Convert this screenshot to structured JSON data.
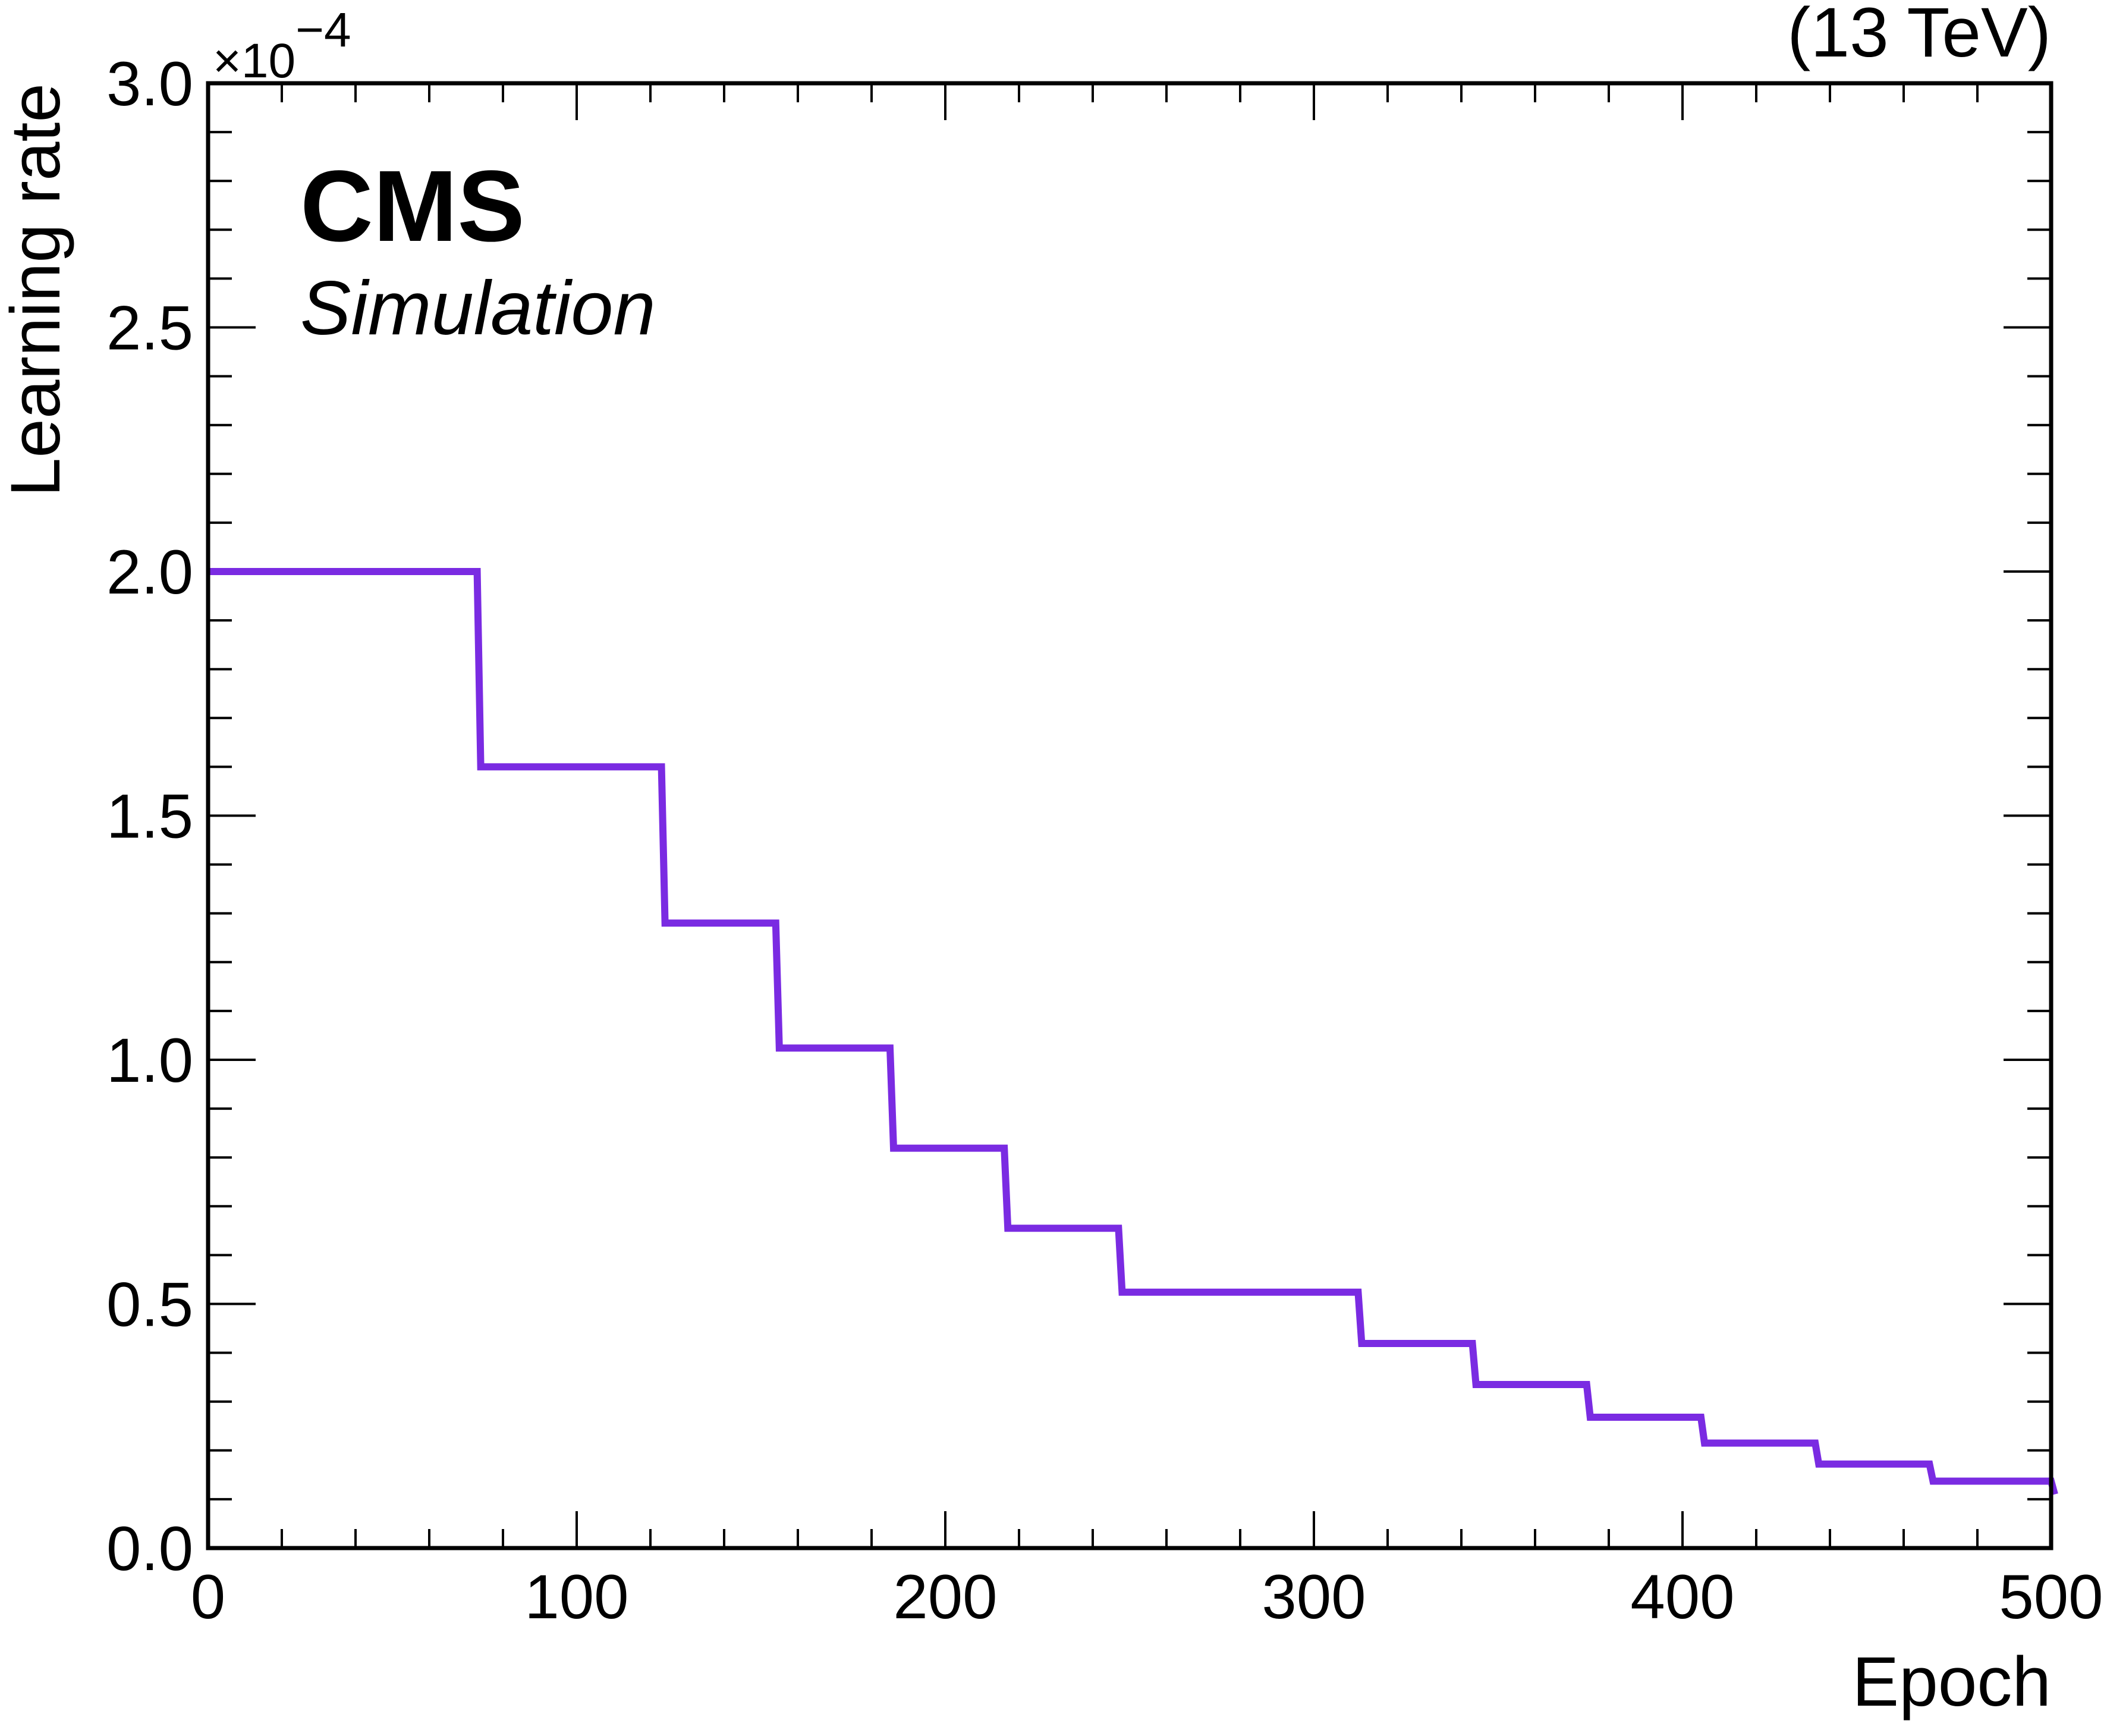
{
  "chart_data": {
    "type": "line",
    "experiment_label": "CMS",
    "sublabel": "Simulation",
    "energy_label": "(13 TeV)",
    "xlabel": "Epoch",
    "ylabel": "Learning rate",
    "y_multiplier_label": "×10",
    "y_multiplier_exponent": "−4",
    "xlim": [
      0,
      500
    ],
    "ylim": [
      0.0,
      3.0
    ],
    "x_ticks": [
      "0",
      "100",
      "200",
      "300",
      "400",
      "500"
    ],
    "y_ticks": [
      "0.0",
      "0.5",
      "1.0",
      "1.5",
      "2.0",
      "2.5",
      "3.0"
    ],
    "grid": false,
    "legend": "none",
    "series": [
      {
        "color": "#7a2be2",
        "step": "post",
        "x": [
          0,
          73,
          123,
          154,
          185,
          216,
          247,
          312,
          343,
          374,
          405,
          436,
          467,
          498,
          500
        ],
        "y": [
          2.0,
          1.6,
          1.28,
          1.024,
          0.819,
          0.655,
          0.524,
          0.419,
          0.335,
          0.268,
          0.215,
          0.172,
          0.137,
          0.137,
          0.11
        ]
      }
    ]
  }
}
